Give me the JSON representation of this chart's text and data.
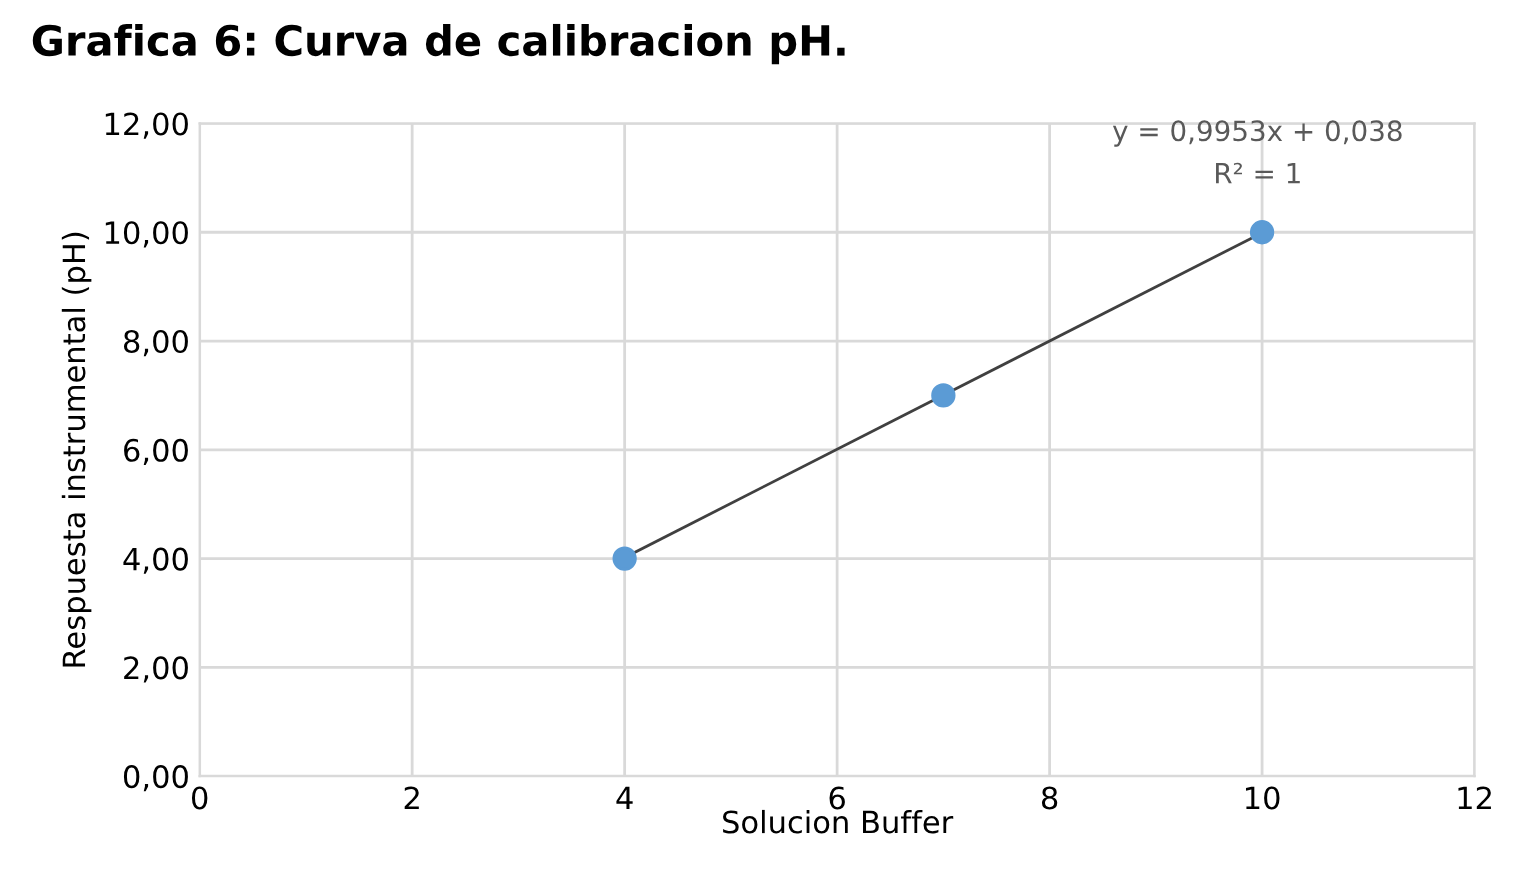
{
  "chart_data": {
    "type": "scatter",
    "title": "Grafica 6: Curva de calibracion pH.",
    "xlabel": "Solucion Buffer",
    "ylabel": "Respuesta instrumental (pH)",
    "annotations": [
      "y = 0,9953x + 0,038",
      "R² = 1"
    ],
    "x": [
      4,
      7,
      10
    ],
    "series": [
      {
        "color": "#5b9bd5",
        "values": [
          4,
          7,
          10
        ],
        "marker": "circle"
      },
      {
        "type": "line",
        "color": "#404040",
        "x": [
          4,
          10
        ],
        "values": [
          4.02,
          9.99
        ],
        "line_style": "solid"
      }
    ],
    "xlim": [
      0,
      12
    ],
    "xticks": [
      0,
      2,
      4,
      6,
      8,
      10,
      12
    ],
    "ylim": [
      0,
      12
    ],
    "yticks": [
      {
        "value": 0,
        "label": "0,00"
      },
      {
        "value": 2,
        "label": "2,00"
      },
      {
        "value": 4,
        "label": "4,00"
      },
      {
        "value": 6,
        "label": "6,00"
      },
      {
        "value": 8,
        "label": "8,00"
      },
      {
        "value": 10,
        "label": "10,00"
      },
      {
        "value": 12,
        "label": "12,00"
      }
    ],
    "grid": true,
    "legend": false
  }
}
